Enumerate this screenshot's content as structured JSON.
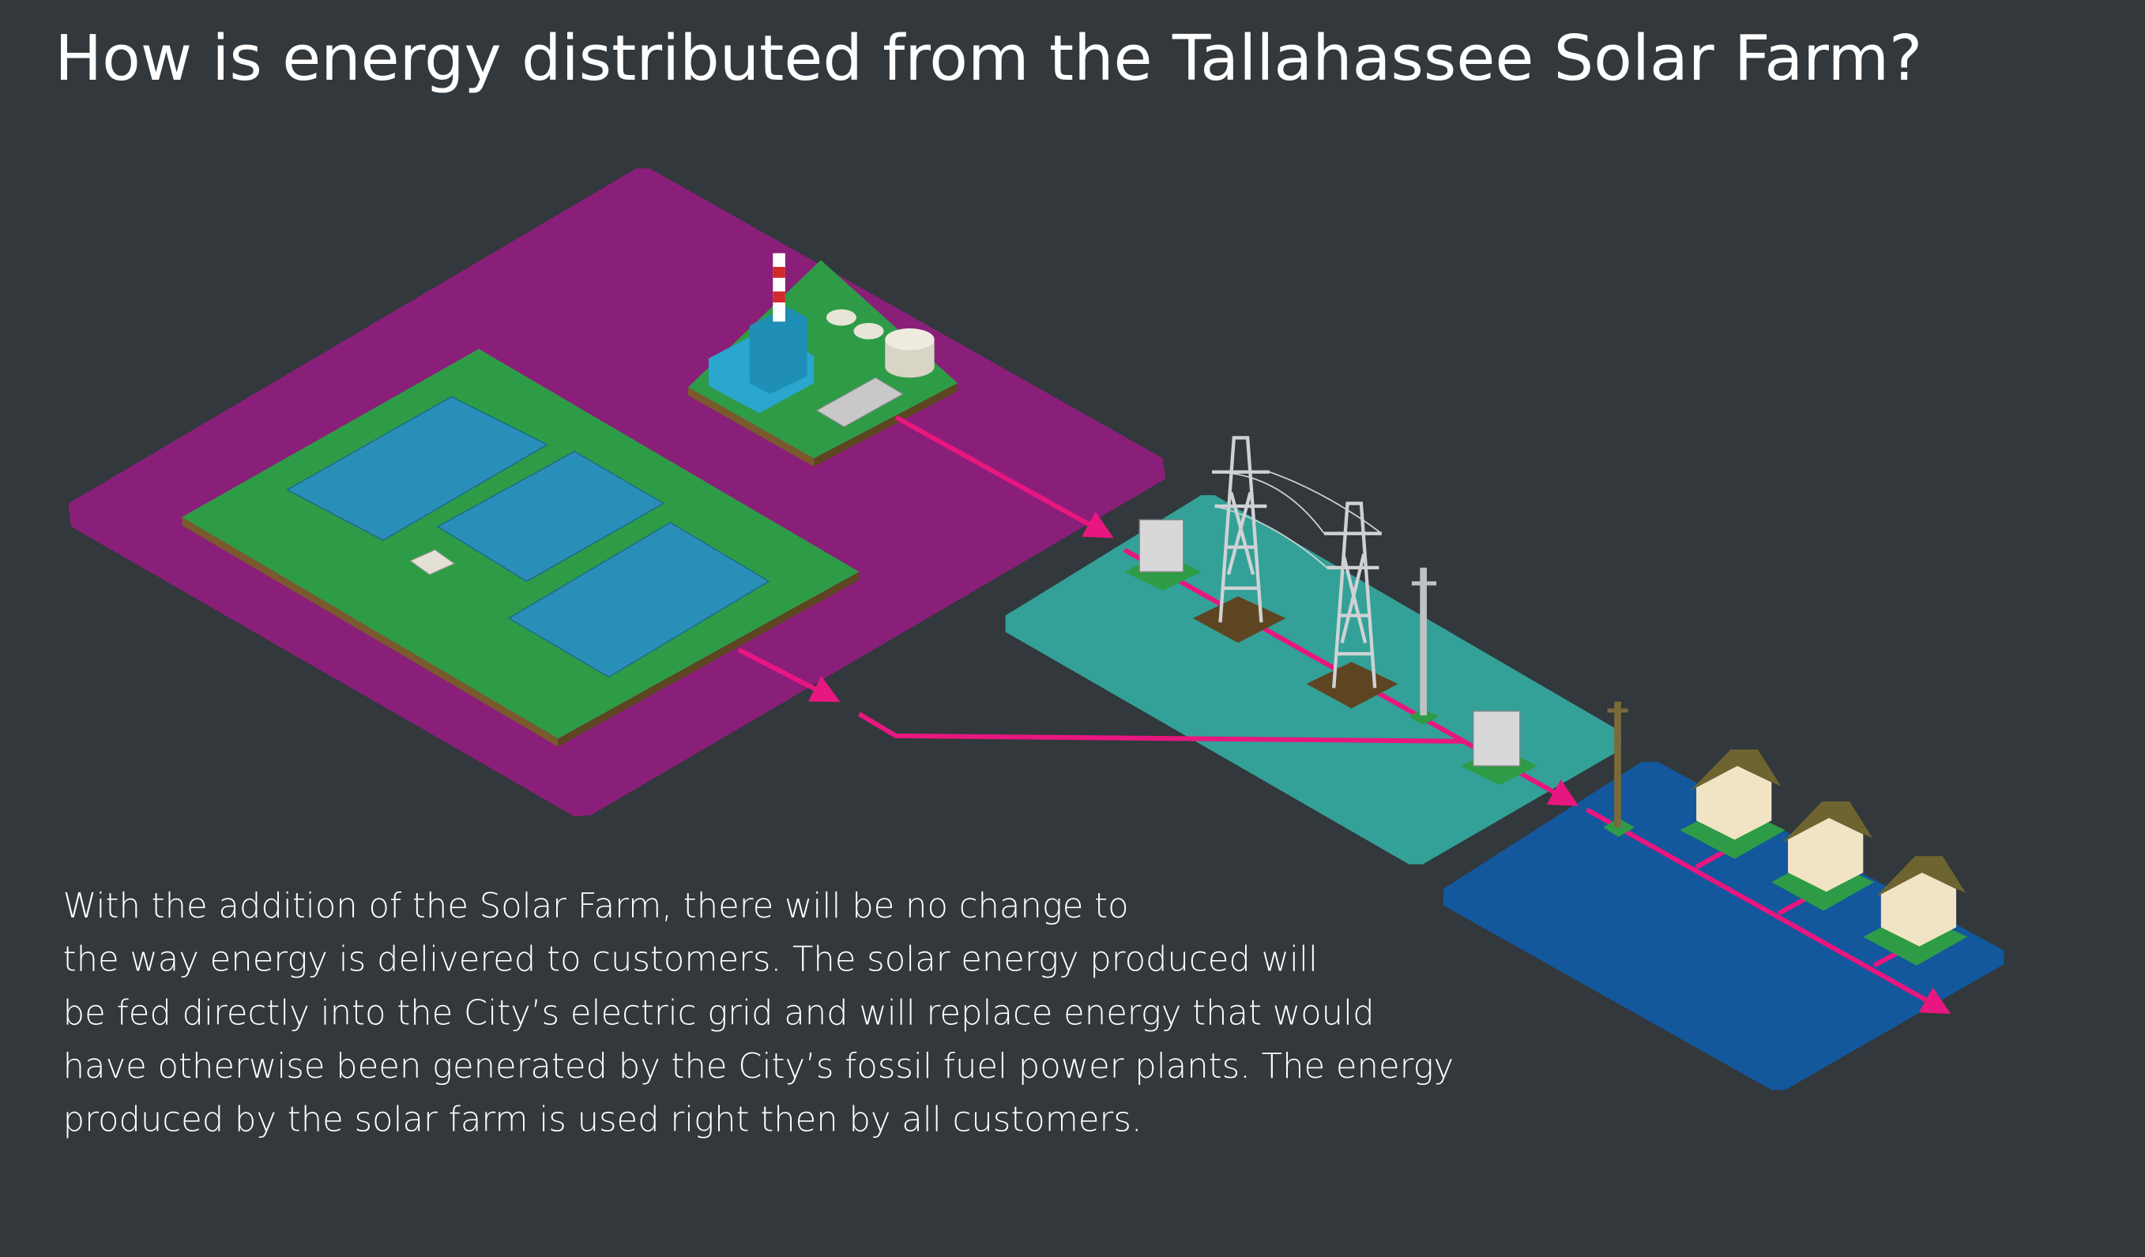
{
  "title": "How is energy distributed from the Tallahassee Solar Farm?",
  "description_lines": [
    "With the addition of the Solar Farm, there will be no change to",
    "the way energy is delivered to customers. The solar energy produced will",
    "be fed directly into the City’s electric grid and will replace energy that would",
    "have otherwise been generated by the City’s fossil fuel power plants. The energy",
    "produced by the solar farm is used right then by all customers."
  ],
  "colors": {
    "background": "#32383c",
    "generation_zone": "#8a1f7a",
    "transmission_zone": "#33a197",
    "distribution_zone": "#13579c",
    "energy_flow": "#e8177f",
    "ground": "#2e9c46",
    "solar_panel": "#2a8fb8"
  },
  "icons": [
    "solar-farm",
    "power-plant",
    "substation",
    "transmission-tower",
    "utility-pole",
    "house",
    "energy-flow-arrow"
  ]
}
